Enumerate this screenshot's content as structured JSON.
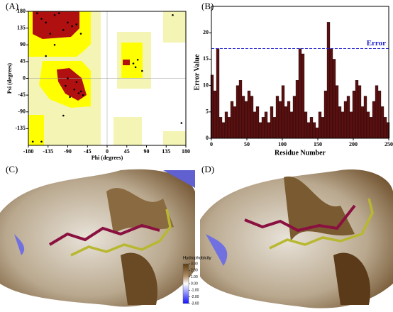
{
  "panels": [
    "(A)",
    "(B)",
    "(C)",
    "(D)"
  ],
  "chart_data": [
    {
      "type": "scatter",
      "xlabel": "Phi (degrees)",
      "ylabel": "Psi (degrees)",
      "color": "#000000",
      "x": [
        -150,
        -140,
        -120,
        -100,
        -90,
        -80,
        -130,
        -110,
        -70,
        -160,
        -65,
        -60,
        -75,
        -85,
        -95,
        -55,
        -70,
        -90,
        -120,
        -150,
        60,
        65,
        70,
        80,
        -170,
        -100,
        150,
        170,
        -60,
        -140
      ],
      "values": [
        160,
        150,
        170,
        130,
        150,
        140,
        120,
        175,
        145,
        175,
        -40,
        -35,
        -30,
        -50,
        -20,
        -45,
        -10,
        0,
        90,
        -170,
        40,
        30,
        50,
        20,
        -170,
        -100,
        170,
        -120,
        120,
        60
      ],
      "xlim": [
        -180,
        180
      ],
      "xticks": [
        -180,
        -135,
        -90,
        -45,
        0,
        45,
        90,
        135,
        180
      ],
      "ylim": [
        -180,
        180
      ],
      "yticks": [
        -135,
        -90,
        -45,
        0,
        45,
        90,
        135,
        180
      ]
    },
    {
      "type": "bar",
      "xlabel": "Residue Number",
      "ylabel": "Error Value",
      "color": "#5a1010",
      "x": [
        1,
        5,
        9,
        13,
        17,
        21,
        25,
        29,
        33,
        37,
        41,
        45,
        49,
        53,
        57,
        61,
        65,
        69,
        73,
        77,
        81,
        85,
        89,
        93,
        97,
        101,
        105,
        109,
        113,
        117,
        121,
        125,
        129,
        133,
        137,
        141,
        145,
        149,
        153,
        157,
        161,
        165,
        169,
        173,
        177,
        181,
        185,
        189,
        193,
        197,
        201,
        205,
        209,
        213,
        217,
        221,
        225,
        229,
        233,
        237,
        241,
        245,
        249
      ],
      "values": [
        12,
        9,
        17,
        4,
        3,
        5,
        4,
        7,
        6,
        10,
        11,
        8,
        7,
        9,
        8,
        5,
        6,
        3,
        4,
        5,
        3,
        6,
        4,
        8,
        7,
        10,
        6,
        7,
        5,
        8,
        11,
        17,
        16,
        5,
        3,
        4,
        3,
        2,
        5,
        4,
        9,
        22,
        17,
        15,
        10,
        6,
        5,
        7,
        8,
        5,
        9,
        11,
        10,
        6,
        8,
        5,
        4,
        7,
        10,
        9,
        6,
        4,
        3
      ],
      "threshold": {
        "value": 17,
        "label": "Error",
        "color": "#2020d0"
      },
      "xlim": [
        0,
        250
      ],
      "xticks": [
        0,
        50,
        100,
        150,
        200,
        250
      ],
      "ylim": [
        0,
        25
      ],
      "yticks": [
        0,
        5,
        10,
        15,
        20
      ]
    }
  ],
  "colorbar": {
    "title": "Hydrophobicity",
    "ticks": [
      {
        "value": 3,
        "label": "3.00"
      },
      {
        "value": 2,
        "label": "2.00"
      },
      {
        "value": 1,
        "label": "1.00"
      },
      {
        "value": 0,
        "label": "0.00"
      },
      {
        "value": -1,
        "label": "-1.00"
      },
      {
        "value": -2,
        "label": "-2.00"
      },
      {
        "value": -3,
        "label": "-3.00"
      }
    ]
  }
}
